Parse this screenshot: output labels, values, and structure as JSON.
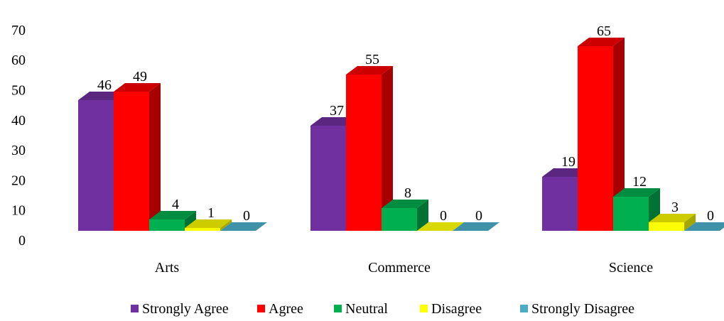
{
  "chart_data": {
    "type": "bar",
    "categories": [
      "Arts",
      "Commerce",
      "Science"
    ],
    "series": [
      {
        "name": "Strongly Agree",
        "values": [
          46,
          37,
          19
        ],
        "color": "#7030A0"
      },
      {
        "name": "Agree",
        "values": [
          49,
          55,
          65
        ],
        "color": "#FF0000"
      },
      {
        "name": "Neutral",
        "values": [
          4,
          8,
          12
        ],
        "color": "#00B050"
      },
      {
        "name": "Disagree",
        "values": [
          1,
          0,
          3
        ],
        "color": "#FFFF00"
      },
      {
        "name": "Strongly Disagree",
        "values": [
          0,
          0,
          0
        ],
        "color": "#4BACC6"
      }
    ],
    "yticks": [
      "0",
      "10",
      "20",
      "30",
      "40",
      "50",
      "60",
      "70"
    ],
    "ylim": [
      0,
      70
    ],
    "grid": false,
    "legend_position": "bottom",
    "three_d": true
  }
}
